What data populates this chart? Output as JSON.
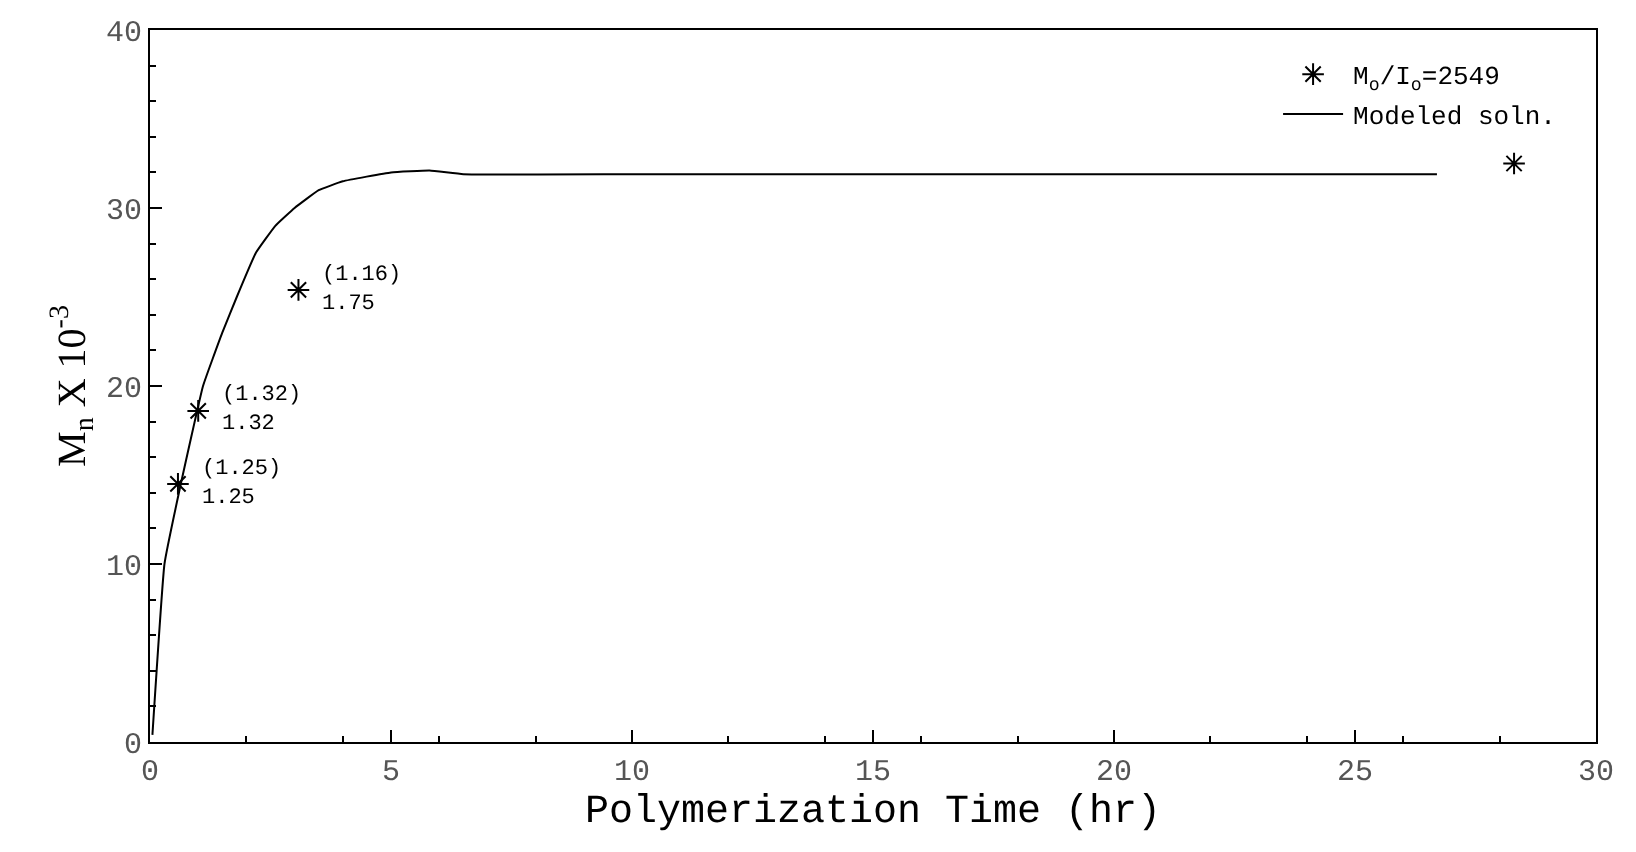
{
  "chart_data": {
    "type": "line",
    "xlabel": "Polymerization Time (hr)",
    "ylabel": "M$_{n}$ X 10$^{-3}$",
    "xlim": [
      0,
      30
    ],
    "xticks": [
      0,
      5,
      10,
      15,
      20,
      25,
      30
    ],
    "ylim": [
      0,
      40
    ],
    "yticks": [
      0,
      10,
      20,
      30,
      40
    ],
    "legend": "top right",
    "series": [
      {
        "name": "M$_{o}$/I$_{o}$=2549",
        "type": "scatter",
        "marker": "cross",
        "color": "#000000",
        "x": [
          0.58,
          1.0,
          3.08,
          28.3
        ],
        "values": [
          14.5,
          18.6,
          25.4,
          32.5
        ]
      },
      {
        "name": "Modeled soln.",
        "marker": "none",
        "line_style": "solid",
        "color": "#000000",
        "x": [
          0.05,
          0.3,
          0.6,
          1.1,
          1.5,
          1.8,
          2.2,
          2.6,
          3.0,
          3.5,
          4.0,
          5.0,
          5.8,
          6.5,
          10,
          15,
          20,
          26.7
        ],
        "values": [
          0.4,
          10,
          14,
          20,
          23,
          25,
          27.5,
          29,
          30,
          31,
          31.5,
          32,
          32.1,
          31.9,
          31.9,
          31.9,
          31.9,
          31.9
        ]
      }
    ],
    "annotations": [
      {
        "text": "(1.25)\n1.25",
        "x": 0.58,
        "y": 14.5
      },
      {
        "text": "(1.32)\n1.32",
        "x": 1.0,
        "y": 18.6
      },
      {
        "text": "(1.16)\n1.75",
        "x": 3.08,
        "y": 25.4
      }
    ]
  }
}
